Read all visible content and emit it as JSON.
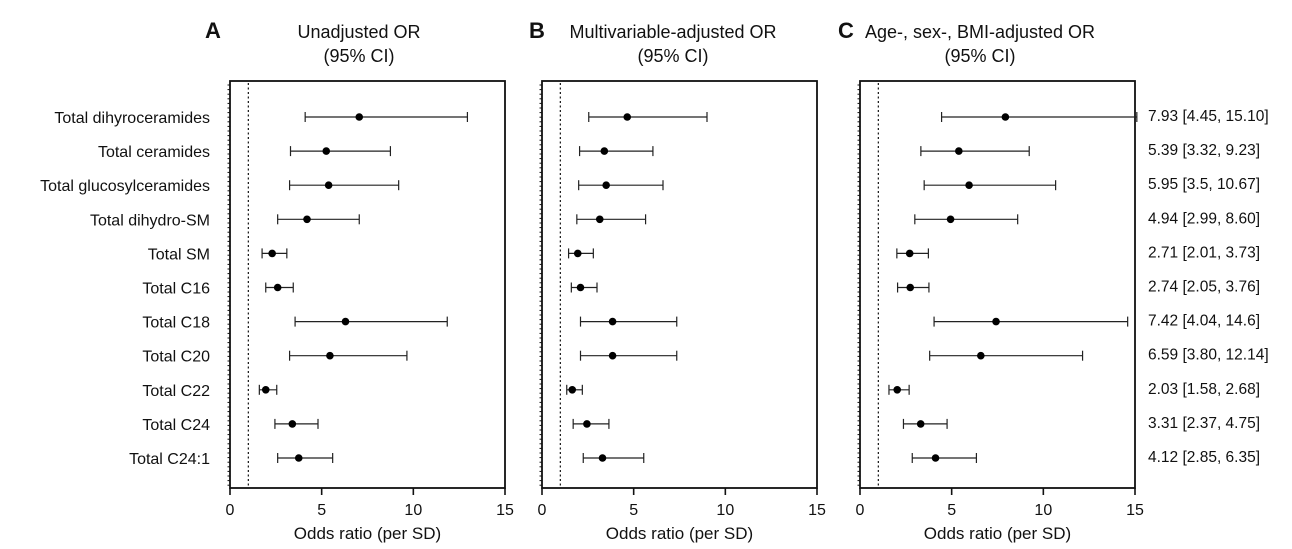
{
  "chart_data": [
    {
      "type": "forest",
      "panel_label": "A",
      "title": "Unadjusted OR\n(95% CI)",
      "xlabel": "Odds ratio (per SD)",
      "xlim": [
        0,
        15
      ],
      "xticks": [
        0,
        5,
        10,
        15
      ],
      "reference_line": 1,
      "categories": [
        "Total dihyroceramides",
        "Total ceramides",
        "Total glucosylceramides",
        "Total dihydro-SM",
        "Total SM",
        "Total C16",
        "Total C18",
        "Total C20",
        "Total C22",
        "Total C24",
        "Total C24:1"
      ],
      "estimates": [
        7.05,
        5.25,
        5.38,
        4.2,
        2.3,
        2.6,
        6.3,
        5.45,
        1.95,
        3.4,
        3.75
      ],
      "lower": [
        4.1,
        3.3,
        3.25,
        2.6,
        1.75,
        1.95,
        3.55,
        3.25,
        1.6,
        2.45,
        2.6
      ],
      "upper": [
        12.95,
        8.75,
        9.2,
        7.05,
        3.1,
        3.45,
        11.85,
        9.65,
        2.55,
        4.8,
        5.6
      ]
    },
    {
      "type": "forest",
      "panel_label": "B",
      "title": "Multivariable-adjusted OR\n(95% CI)",
      "xlabel": "Odds ratio (per SD)",
      "xlim": [
        0,
        15
      ],
      "xticks": [
        0,
        5,
        10,
        15
      ],
      "reference_line": 1,
      "categories": [
        "Total dihyroceramides",
        "Total ceramides",
        "Total glucosylceramides",
        "Total dihydro-SM",
        "Total SM",
        "Total C16",
        "Total C18",
        "Total C20",
        "Total C22",
        "Total C24",
        "Total C24:1"
      ],
      "estimates": [
        4.65,
        3.4,
        3.5,
        3.15,
        1.95,
        2.1,
        3.85,
        3.85,
        1.65,
        2.45,
        3.3
      ],
      "lower": [
        2.55,
        2.05,
        2.0,
        1.9,
        1.45,
        1.6,
        2.1,
        2.1,
        1.35,
        1.7,
        2.25
      ],
      "upper": [
        9.0,
        6.05,
        6.6,
        5.65,
        2.8,
        3.0,
        7.35,
        7.35,
        2.2,
        3.65,
        5.55
      ]
    },
    {
      "type": "forest",
      "panel_label": "C",
      "title": "Age-, sex-, BMI-adjusted OR\n(95% CI)",
      "xlabel": "Odds ratio (per SD)",
      "xlim": [
        0,
        15
      ],
      "xticks": [
        0,
        5,
        10,
        15
      ],
      "reference_line": 1,
      "categories": [
        "Total dihyroceramides",
        "Total ceramides",
        "Total glucosylceramides",
        "Total dihydro-SM",
        "Total SM",
        "Total C16",
        "Total C18",
        "Total C20",
        "Total C22",
        "Total C24",
        "Total C24:1"
      ],
      "estimates": [
        7.93,
        5.39,
        5.95,
        4.94,
        2.71,
        2.74,
        7.42,
        6.59,
        2.03,
        3.31,
        4.12
      ],
      "lower": [
        4.45,
        3.32,
        3.5,
        2.99,
        2.01,
        2.05,
        4.04,
        3.8,
        1.58,
        2.37,
        2.85
      ],
      "upper": [
        15.1,
        9.23,
        10.67,
        8.6,
        3.73,
        3.76,
        14.6,
        12.14,
        2.68,
        4.75,
        6.35
      ],
      "annotations": [
        "7.93 [4.45, 15.10]",
        "5.39 [3.32, 9.23]",
        "5.95 [3.5, 10.67]",
        "4.94 [2.99, 8.60]",
        "2.71 [2.01, 3.73]",
        "2.74 [2.05, 3.76]",
        "7.42 [4.04, 14.6]",
        "6.59 [3.80, 12.14]",
        "2.03 [1.58, 2.68]",
        "3.31 [2.37, 4.75]",
        "4.12 [2.85, 6.35]"
      ]
    }
  ]
}
